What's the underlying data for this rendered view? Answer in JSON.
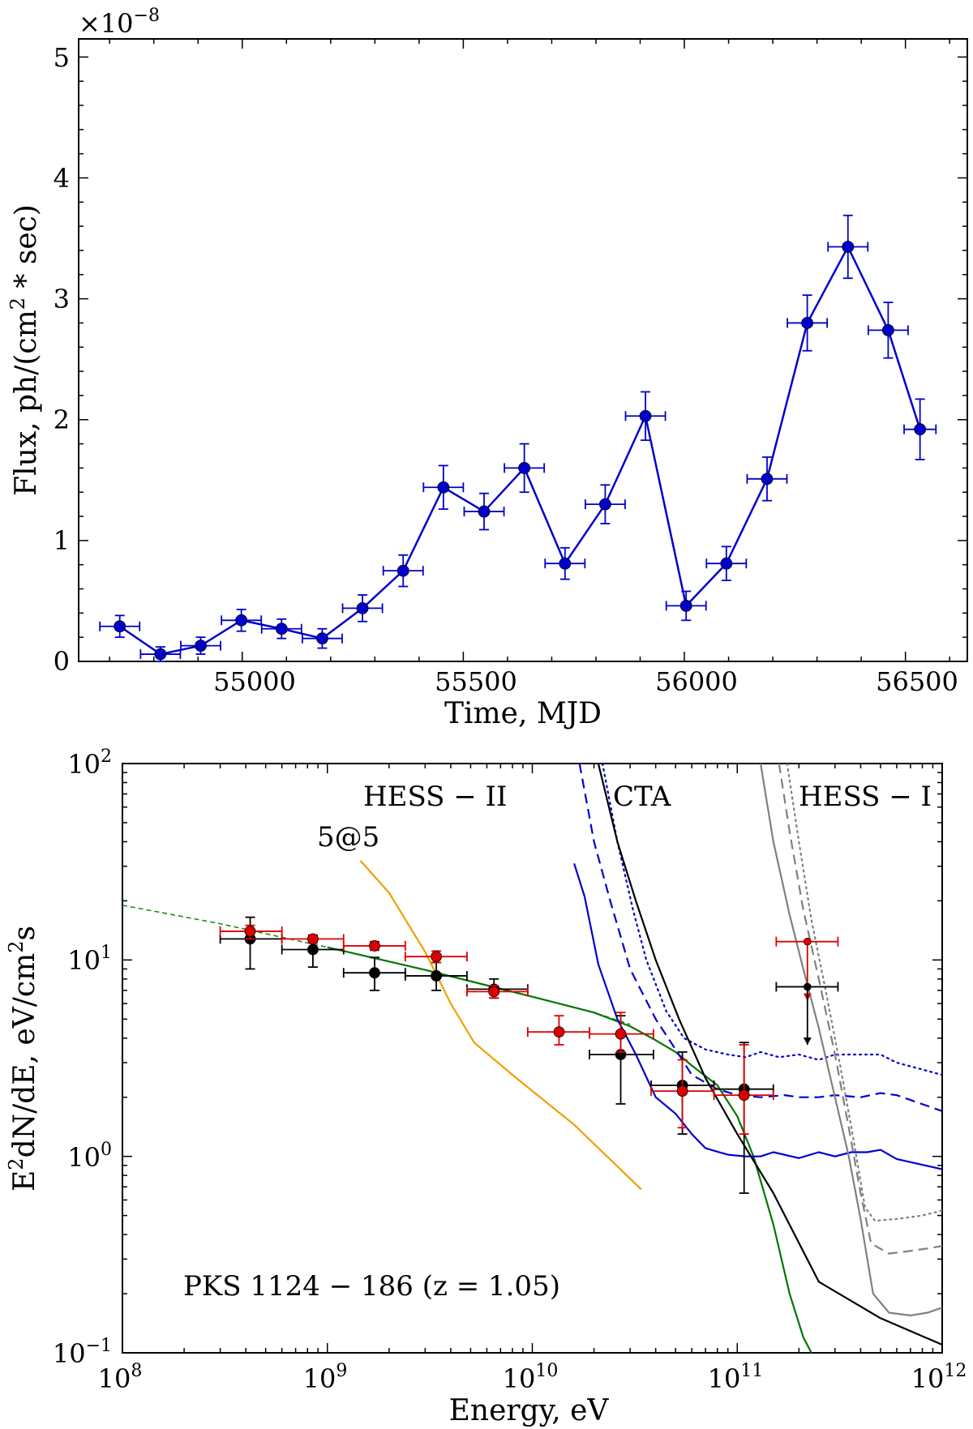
{
  "chart_data": [
    {
      "type": "line",
      "title": "",
      "xlabel": "Time, MJD",
      "ylabel": "Flux, ph/(cm^2 * sec)",
      "ylabel_parts": {
        "pre": "Flux, ph/(cm",
        "sup": "2",
        "post": " * sec)"
      },
      "y_multiplier": {
        "base": "×10",
        "exp": "−8"
      },
      "xlim": [
        54630,
        56640
      ],
      "ylim": [
        0,
        5.15
      ],
      "xticks": [
        55000,
        55500,
        56000,
        56500
      ],
      "yticks": [
        0,
        1,
        2,
        3,
        4,
        5
      ],
      "color": "#0000cc",
      "series": [
        {
          "name": "light-curve",
          "x": [
            54723,
            54815,
            54906,
            54998,
            55089,
            55181,
            55272,
            55364,
            55455,
            55547,
            55638,
            55730,
            55821,
            55912,
            56004,
            56095,
            56187,
            56278,
            56370,
            56461,
            56533
          ],
          "y": [
            0.29,
            0.06,
            0.13,
            0.34,
            0.27,
            0.19,
            0.44,
            0.75,
            1.44,
            1.24,
            1.6,
            0.81,
            1.3,
            2.03,
            0.46,
            0.81,
            1.51,
            2.8,
            3.43,
            2.74,
            1.92
          ],
          "xerr": [
            45,
            45,
            45,
            45,
            45,
            45,
            45,
            45,
            45,
            45,
            45,
            45,
            45,
            45,
            45,
            45,
            45,
            45,
            45,
            45,
            36
          ],
          "yerr": [
            0.09,
            0.06,
            0.07,
            0.09,
            0.08,
            0.08,
            0.11,
            0.13,
            0.18,
            0.15,
            0.2,
            0.13,
            0.16,
            0.2,
            0.12,
            0.14,
            0.18,
            0.23,
            0.26,
            0.23,
            0.25
          ]
        }
      ]
    },
    {
      "type": "scatter",
      "title": "",
      "xlabel": "Energy, eV",
      "ylabel": "E^2dN/dE, eV/cm^2s",
      "ylabel_parts": {
        "a": "E",
        "a_sup": "2",
        "b": "dN/dE, eV/cm",
        "b_sup": "2",
        "c": "s"
      },
      "xscale": "log",
      "yscale": "log",
      "xlim": [
        100000000.0,
        1000000000000.0
      ],
      "ylim": [
        0.1,
        100
      ],
      "xticks": [
        {
          "value": 100000000.0,
          "base": "10",
          "exp": "8"
        },
        {
          "value": 1000000000.0,
          "base": "10",
          "exp": "9"
        },
        {
          "value": 10000000000.0,
          "base": "10",
          "exp": "10"
        },
        {
          "value": 100000000000.0,
          "base": "10",
          "exp": "11"
        },
        {
          "value": 1000000000000.0,
          "base": "10",
          "exp": "12"
        }
      ],
      "yticks": [
        {
          "value": 0.1,
          "base": "10",
          "exp": "−1"
        },
        {
          "value": 1,
          "base": "10",
          "exp": "0"
        },
        {
          "value": 10,
          "base": "10",
          "exp": "1"
        },
        {
          "value": 100,
          "base": "10",
          "exp": "2"
        }
      ],
      "annotations": [
        {
          "id": "hess2-label",
          "text": "HESS − II",
          "color": "#0000cc"
        },
        {
          "id": "cta-label",
          "text": "CTA",
          "color": "#000000"
        },
        {
          "id": "hess1-label",
          "text": "HESS − I",
          "color": "#808080"
        },
        {
          "id": "five-label",
          "text": "5@5",
          "color": "#f0a000"
        },
        {
          "id": "source-label",
          "text": "PKS 1124 − 186 (z = 1.05)",
          "color": "#000000"
        }
      ],
      "curves": [
        {
          "name": "model-dashed",
          "color": "#228822",
          "style": "dash-thin",
          "x": [
            100000000.0,
            300000000.0,
            1000000000.0,
            3000000000.0,
            10000000000.0,
            20000000000.0,
            30000000000.0
          ],
          "y": [
            19,
            15.3,
            11.6,
            8.9,
            6.5,
            5.4,
            4.7
          ]
        },
        {
          "name": "model-absorbed",
          "color": "#007700",
          "style": "solid",
          "x": [
            1000000000.0,
            3000000000.0,
            10000000000.0,
            20000000000.0,
            30000000000.0,
            40000000000.0,
            50000000000.0,
            60000000000.0,
            80000000000.0,
            100000000000.0,
            120000000000.0,
            150000000000.0,
            180000000000.0,
            210000000000.0,
            230000000000.0
          ],
          "y": [
            11.6,
            8.9,
            6.5,
            5.4,
            4.6,
            3.9,
            3.4,
            2.9,
            2.3,
            1.6,
            1.0,
            0.45,
            0.2,
            0.12,
            0.1
          ]
        },
        {
          "name": "5@5",
          "color": "#f0a000",
          "style": "solid",
          "x": [
            1450000000.0,
            2000000000.0,
            3000000000.0,
            4000000000.0,
            5200000000.0,
            8000000000.0,
            16000000000.0,
            34000000000.0
          ],
          "y": [
            32,
            22,
            11,
            6.0,
            3.8,
            2.6,
            1.45,
            0.68
          ]
        },
        {
          "name": "HESS-II-solid",
          "color": "#0000cc",
          "style": "solid",
          "x": [
            16000000000.0,
            18000000000.0,
            21000000000.0,
            26000000000.0,
            32000000000.0,
            40000000000.0,
            50000000000.0,
            60000000000.0,
            70000000000.0,
            90000000000.0,
            110000000000.0,
            130000000000.0,
            150000000000.0,
            200000000000.0,
            250000000000.0,
            300000000000.0,
            360000000000.0,
            430000000000.0,
            500000000000.0,
            600000000000.0,
            1000000000000.0
          ],
          "y": [
            31,
            21,
            9.5,
            5.0,
            3.3,
            2.0,
            1.65,
            1.3,
            1.1,
            1.02,
            1.0,
            1.0,
            1.05,
            0.98,
            1.05,
            1.0,
            1.05,
            1.05,
            1.08,
            0.97,
            0.86
          ]
        },
        {
          "name": "HESS-II-dashed",
          "color": "#0000cc",
          "style": "dash",
          "x": [
            17000000000.0,
            20000000000.0,
            24000000000.0,
            30000000000.0,
            40000000000.0,
            50000000000.0,
            60000000000.0,
            80000000000.0,
            100000000000.0,
            130000000000.0,
            170000000000.0,
            200000000000.0,
            250000000000.0,
            300000000000.0,
            400000000000.0,
            500000000000.0,
            600000000000.0,
            1000000000000.0
          ],
          "y": [
            100,
            40,
            20,
            9.0,
            5.0,
            3.5,
            2.6,
            2.2,
            2.05,
            2.0,
            2.05,
            2.0,
            2.0,
            2.05,
            2.0,
            2.1,
            2.05,
            1.7
          ]
        },
        {
          "name": "HESS-II-dotted",
          "color": "#0000cc",
          "style": "dot",
          "x": [
            22000000000.0,
            26000000000.0,
            31000000000.0,
            36000000000.0,
            45000000000.0,
            55000000000.0,
            70000000000.0,
            90000000000.0,
            110000000000.0,
            130000000000.0,
            160000000000.0,
            200000000000.0,
            250000000000.0,
            300000000000.0,
            400000000000.0,
            500000000000.0,
            600000000000.0,
            1000000000000.0
          ],
          "y": [
            100,
            40,
            18,
            10,
            5.5,
            4.0,
            3.5,
            3.3,
            3.2,
            3.4,
            3.2,
            3.3,
            3.1,
            3.3,
            3.3,
            3.3,
            3.0,
            2.6
          ]
        },
        {
          "name": "CTA",
          "color": "#000000",
          "style": "solid",
          "x": [
            21000000000.0,
            26000000000.0,
            32000000000.0,
            40000000000.0,
            52000000000.0,
            70000000000.0,
            100000000000.0,
            150000000000.0,
            250000000000.0,
            500000000000.0,
            1000000000000.0
          ],
          "y": [
            100,
            40,
            20,
            10,
            5.0,
            2.5,
            1.3,
            0.65,
            0.23,
            0.15,
            0.11
          ]
        },
        {
          "name": "HESS-I-solid",
          "color": "#808080",
          "style": "solid",
          "x": [
            130000000000.0,
            150000000000.0,
            180000000000.0,
            210000000000.0,
            250000000000.0,
            300000000000.0,
            350000000000.0,
            400000000000.0,
            460000000000.0,
            550000000000.0,
            700000000000.0,
            850000000000.0,
            1000000000000.0
          ],
          "y": [
            100,
            40,
            17,
            9,
            4.5,
            2.0,
            1.0,
            0.48,
            0.2,
            0.16,
            0.155,
            0.16,
            0.17
          ]
        },
        {
          "name": "HESS-I-dashed",
          "color": "#808080",
          "style": "dash",
          "x": [
            160000000000.0,
            180000000000.0,
            210000000000.0,
            250000000000.0,
            300000000000.0,
            350000000000.0,
            400000000000.0,
            450000000000.0,
            550000000000.0,
            700000000000.0,
            850000000000.0,
            1000000000000.0
          ],
          "y": [
            100,
            45,
            18,
            8.0,
            3.3,
            1.4,
            0.65,
            0.36,
            0.32,
            0.33,
            0.34,
            0.35
          ]
        },
        {
          "name": "HESS-I-dotted",
          "color": "#808080",
          "style": "dot",
          "x": [
            175000000000.0,
            200000000000.0,
            230000000000.0,
            270000000000.0,
            320000000000.0,
            370000000000.0,
            420000000000.0,
            470000000000.0,
            600000000000.0,
            800000000000.0,
            1000000000000.0
          ],
          "y": [
            100,
            40,
            16,
            7.0,
            2.8,
            1.2,
            0.55,
            0.47,
            0.48,
            0.5,
            0.53
          ]
        }
      ],
      "points": [
        {
          "name": "black",
          "color": "#000000",
          "x": [
            420000000.0,
            850000000.0,
            1700000000.0,
            3400000000.0,
            6500000000.0,
            27000000000.0,
            54000000000.0,
            108000000000.0
          ],
          "y": [
            12.8,
            11.3,
            8.6,
            8.3,
            7.1,
            3.3,
            2.3,
            2.2
          ],
          "xlo": [
            300000000.0,
            600000000.0,
            1200000000.0,
            2400000000.0,
            4800000000.0,
            19000000000.0,
            38000000000.0,
            77000000000.0
          ],
          "xhi": [
            600000000.0,
            1200000000.0,
            2400000000.0,
            4800000000.0,
            9500000000.0,
            39000000000.0,
            77000000000.0,
            150000000000.0
          ],
          "ylo": [
            9.0,
            9.2,
            7.0,
            7.0,
            6.4,
            1.85,
            1.3,
            0.65
          ],
          "yhi": [
            16.5,
            13.3,
            10.3,
            9.7,
            8.0,
            5.2,
            3.4,
            3.8
          ]
        },
        {
          "name": "red",
          "color": "#dd0000",
          "x": [
            420000000.0,
            850000000.0,
            1700000000.0,
            3400000000.0,
            6500000000.0,
            13500000000.0,
            27000000000.0,
            54000000000.0,
            108000000000.0
          ],
          "y": [
            14.0,
            12.8,
            11.8,
            10.4,
            6.9,
            4.3,
            4.2,
            2.15,
            2.05
          ],
          "xlo": [
            300000000.0,
            600000000.0,
            1200000000.0,
            2400000000.0,
            4800000000.0,
            9500000000.0,
            19000000000.0,
            38000000000.0,
            77000000000.0
          ],
          "xhi": [
            600000000.0,
            1200000000.0,
            2400000000.0,
            4800000000.0,
            9500000000.0,
            19000000000.0,
            39000000000.0,
            77000000000.0,
            150000000000.0
          ],
          "ylo": [
            12.8,
            12.2,
            11.2,
            9.7,
            6.4,
            3.7,
            3.4,
            1.4,
            1.3
          ],
          "yhi": [
            15.0,
            13.4,
            12.4,
            11.1,
            7.4,
            5.2,
            5.4,
            3.1,
            3.7
          ]
        }
      ],
      "upper_limits": [
        {
          "name": "red-ul",
          "color": "#dd0000",
          "x": 220000000000.0,
          "y": 12.4,
          "xlo": 155000000000.0,
          "xhi": 310000000000.0,
          "y_end": 6.2
        },
        {
          "name": "black-ul",
          "color": "#000000",
          "x": 220000000000.0,
          "y": 7.3,
          "xlo": 155000000000.0,
          "xhi": 310000000000.0,
          "y_end": 3.7
        }
      ]
    }
  ]
}
